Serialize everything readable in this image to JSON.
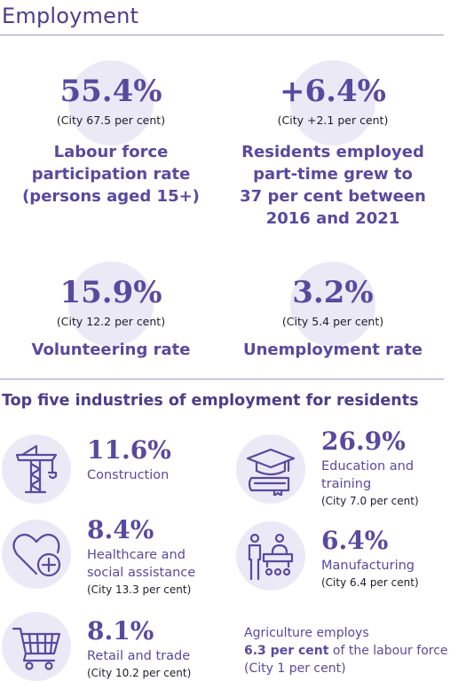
{
  "header": {
    "title": "Employment"
  },
  "stats": [
    {
      "value": "55.4%",
      "city": "(City 67.5 per cent)",
      "label": "Labour force participation rate (persons aged 15+)"
    },
    {
      "value": "+6.4%",
      "city": "(City +2.1 per cent)",
      "label": "Residents employed part-time grew to 37 per cent between 2016 and 2021"
    },
    {
      "value": "15.9%",
      "city": "(City 12.2 per cent)",
      "label": "Volunteering rate"
    },
    {
      "value": "3.2%",
      "city": "(City 5.4 per cent)",
      "label": "Unemployment rate"
    }
  ],
  "industries": {
    "heading": "Top five industries of employment for residents",
    "items": [
      {
        "value": "11.6%",
        "name": "Construction",
        "city": "",
        "icon": "crane-icon"
      },
      {
        "value": "26.9%",
        "name": "Education and training",
        "city": "(City 7.0 per cent)",
        "icon": "graduation-cap-icon"
      },
      {
        "value": "8.4%",
        "name": "Healthcare and social assistance",
        "city": "(City 13.3 per cent)",
        "icon": "heart-plus-icon"
      },
      {
        "value": "6.4%",
        "name": "Manufacturing",
        "city": "(City 6.4 per cent)",
        "icon": "factory-workers-icon"
      },
      {
        "value": "8.1%",
        "name": "Retail and trade",
        "city": "(City 10.2 per cent)",
        "icon": "shopping-cart-icon"
      }
    ],
    "note": {
      "prefix": "Agriculture employs",
      "bold": "6.3 per cent",
      "suffix": "of the labour force (City 1 per cent)"
    }
  },
  "colors": {
    "accent": "#574a9f",
    "circle": "#ece9f7",
    "text": "#1d1d2a"
  }
}
